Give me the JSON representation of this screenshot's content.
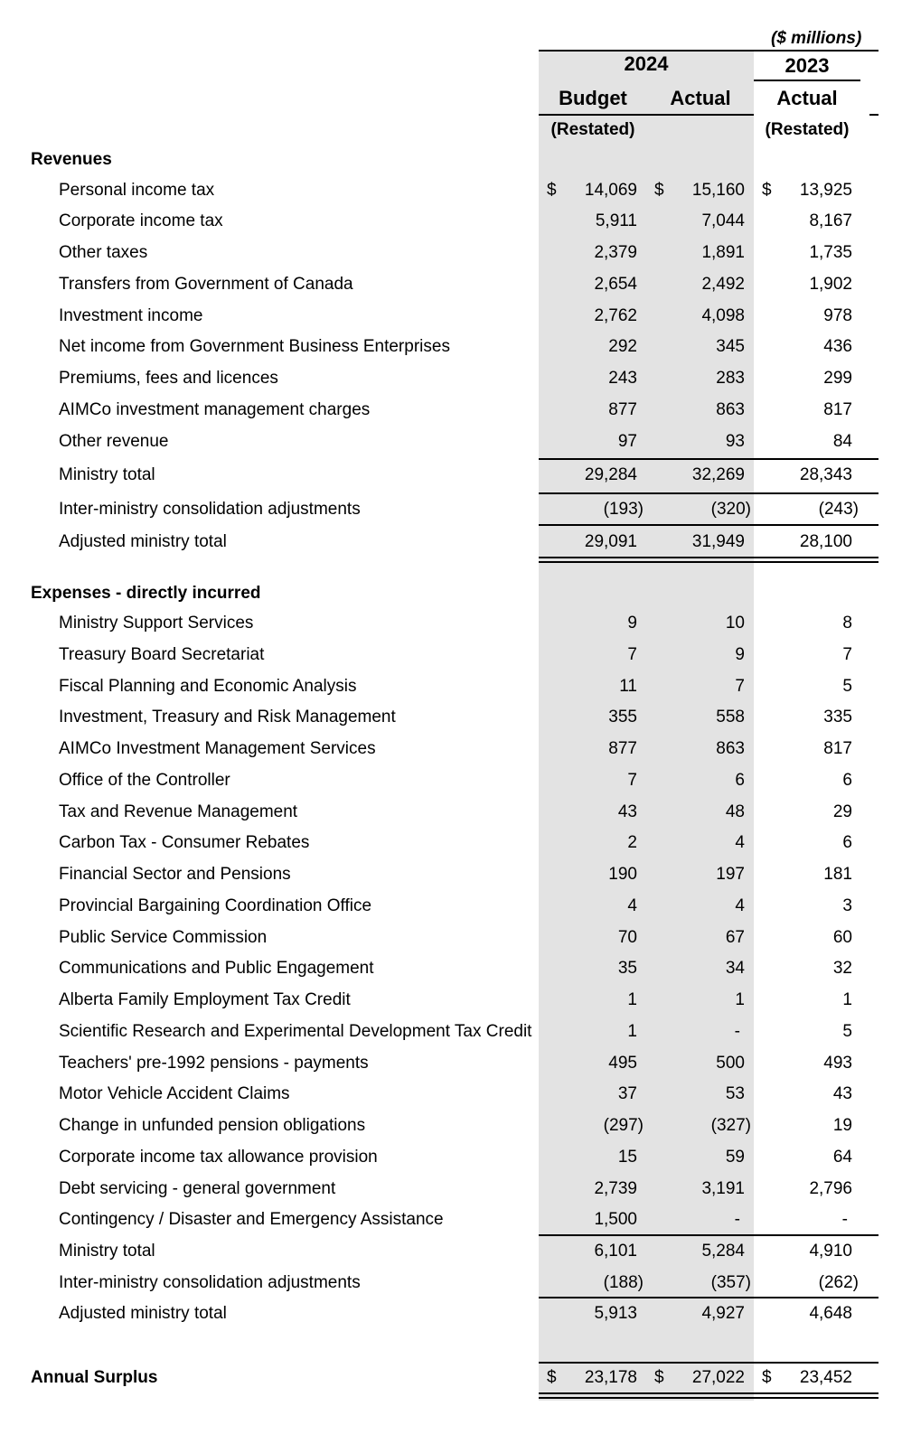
{
  "header": {
    "units": "($ millions)",
    "year_current": "2024",
    "year_prior": "2023",
    "col_budget": "Budget",
    "col_actual": "Actual",
    "col_actual_prior": "Actual",
    "restated": "(Restated)"
  },
  "currency_symbol": "$",
  "revenues": {
    "heading": "Revenues",
    "rows": [
      {
        "label": "Personal income tax",
        "budget": "14,069",
        "actual": "15,160",
        "prior": "13,925"
      },
      {
        "label": "Corporate income tax",
        "budget": "5,911",
        "actual": "7,044",
        "prior": "8,167"
      },
      {
        "label": "Other taxes",
        "budget": "2,379",
        "actual": "1,891",
        "prior": "1,735"
      },
      {
        "label": "Transfers from Government of Canada",
        "budget": "2,654",
        "actual": "2,492",
        "prior": "1,902"
      },
      {
        "label": "Investment income",
        "budget": "2,762",
        "actual": "4,098",
        "prior": "978"
      },
      {
        "label": "Net income from Government Business Enterprises",
        "budget": "292",
        "actual": "345",
        "prior": "436"
      },
      {
        "label": "Premiums, fees and licences",
        "budget": "243",
        "actual": "283",
        "prior": "299"
      },
      {
        "label": "AIMCo investment management charges",
        "budget": "877",
        "actual": "863",
        "prior": "817"
      },
      {
        "label": "Other revenue",
        "budget": "97",
        "actual": "93",
        "prior": "84"
      }
    ],
    "ministry_total": {
      "label": "Ministry total",
      "budget": "29,284",
      "actual": "32,269",
      "prior": "28,343"
    },
    "consolidation": {
      "label": "Inter-ministry consolidation adjustments",
      "budget": "(193)",
      "actual": "(320)",
      "prior": "(243)"
    },
    "adjusted_total": {
      "label": "Adjusted ministry total",
      "budget": "29,091",
      "actual": "31,949",
      "prior": "28,100"
    }
  },
  "expenses": {
    "heading": "Expenses - directly incurred",
    "rows": [
      {
        "label": "Ministry Support Services",
        "budget": "9",
        "actual": "10",
        "prior": "8"
      },
      {
        "label": "Treasury Board Secretariat",
        "budget": "7",
        "actual": "9",
        "prior": "7"
      },
      {
        "label": "Fiscal Planning and Economic Analysis",
        "budget": "11",
        "actual": "7",
        "prior": "5"
      },
      {
        "label": "Investment, Treasury and Risk Management",
        "budget": "355",
        "actual": "558",
        "prior": "335"
      },
      {
        "label": "AIMCo Investment Management Services",
        "budget": "877",
        "actual": "863",
        "prior": "817"
      },
      {
        "label": "Office of the Controller",
        "budget": "7",
        "actual": "6",
        "prior": "6"
      },
      {
        "label": "Tax and Revenue Management",
        "budget": "43",
        "actual": "48",
        "prior": "29"
      },
      {
        "label": "Carbon Tax - Consumer Rebates",
        "budget": "2",
        "actual": "4",
        "prior": "6"
      },
      {
        "label": "Financial Sector and Pensions",
        "budget": "190",
        "actual": "197",
        "prior": "181"
      },
      {
        "label": "Provincial Bargaining Coordination Office",
        "budget": "4",
        "actual": "4",
        "prior": "3"
      },
      {
        "label": "Public Service Commission",
        "budget": "70",
        "actual": "67",
        "prior": "60"
      },
      {
        "label": "Communications and Public Engagement",
        "budget": "35",
        "actual": "34",
        "prior": "32"
      },
      {
        "label": "Alberta Family Employment Tax Credit",
        "budget": "1",
        "actual": "1",
        "prior": "1"
      },
      {
        "label": "Scientific Research and Experimental Development Tax Credit",
        "budget": "1",
        "actual": "-",
        "prior": "5"
      },
      {
        "label": "Teachers' pre-1992 pensions - payments",
        "budget": "495",
        "actual": "500",
        "prior": "493"
      },
      {
        "label": "Motor Vehicle Accident Claims",
        "budget": "37",
        "actual": "53",
        "prior": "43"
      },
      {
        "label": "Change in unfunded pension obligations",
        "budget": "(297)",
        "actual": "(327)",
        "prior": "19"
      },
      {
        "label": "Corporate income tax allowance provision",
        "budget": "15",
        "actual": "59",
        "prior": "64"
      },
      {
        "label": "Debt servicing - general government",
        "budget": "2,739",
        "actual": "3,191",
        "prior": "2,796"
      },
      {
        "label": "Contingency / Disaster and Emergency Assistance",
        "budget": "1,500",
        "actual": "-",
        "prior": "-"
      }
    ],
    "ministry_total": {
      "label": "Ministry total",
      "budget": "6,101",
      "actual": "5,284",
      "prior": "4,910"
    },
    "consolidation": {
      "label": "Inter-ministry consolidation adjustments",
      "budget": "(188)",
      "actual": "(357)",
      "prior": "(262)"
    },
    "adjusted_total": {
      "label": "Adjusted ministry total",
      "budget": "5,913",
      "actual": "4,927",
      "prior": "4,648"
    }
  },
  "surplus": {
    "label": "Annual Surplus",
    "budget": "23,178",
    "actual": "27,022",
    "prior": "23,452"
  }
}
